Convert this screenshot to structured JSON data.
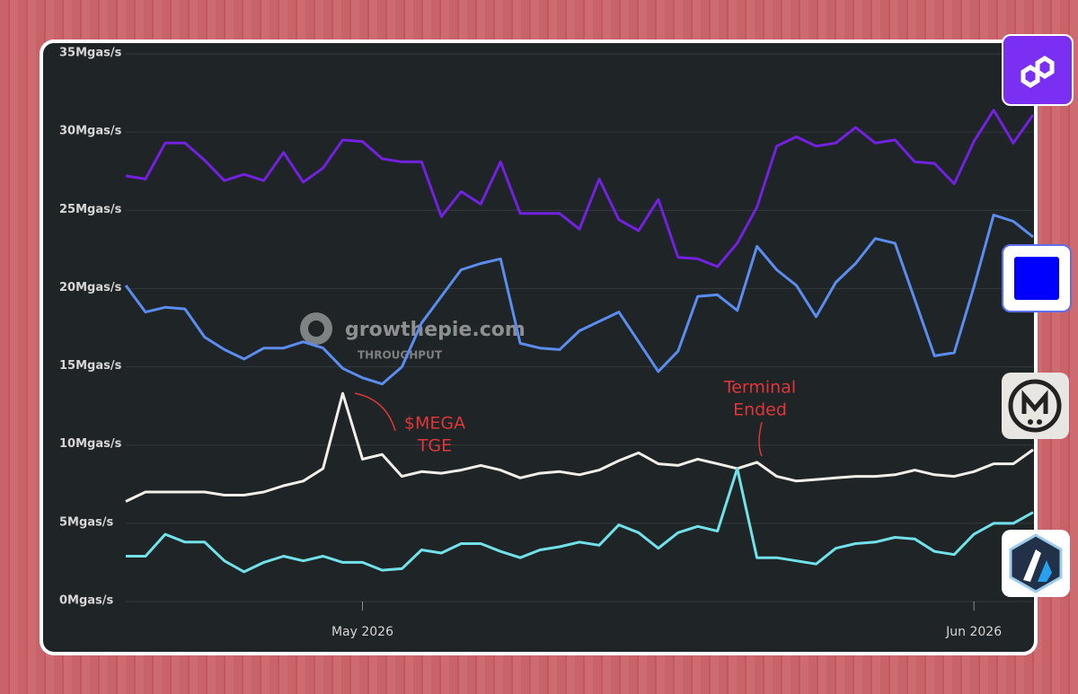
{
  "chart_data": {
    "type": "line",
    "watermark": "growthepie.com",
    "watermark_subtitle": "THROUGHPUT",
    "categories": [
      null,
      null,
      null,
      null,
      null,
      null,
      null,
      null,
      null,
      null,
      null,
      null,
      "May 2026",
      null,
      null,
      null,
      null,
      null,
      null,
      null,
      null,
      null,
      null,
      null,
      null,
      null,
      null,
      null,
      null,
      null,
      null,
      null,
      null,
      null,
      null,
      null,
      null,
      null,
      null,
      null,
      null,
      null,
      null,
      "Jun 2026",
      null,
      null,
      null
    ],
    "series": [
      {
        "color": "#7321e0",
        "values": [
          27.2,
          27.0,
          29.3,
          29.3,
          28.2,
          26.9,
          27.3,
          26.9,
          28.7,
          26.8,
          27.7,
          29.5,
          29.4,
          28.3,
          28.1,
          28.1,
          24.6,
          26.2,
          25.4,
          28.1,
          24.8,
          24.8,
          24.8,
          23.8,
          27.0,
          24.4,
          23.7,
          25.7,
          22.0,
          21.9,
          21.4,
          22.9,
          25.2,
          29.1,
          29.7,
          29.1,
          29.3,
          30.3,
          29.3,
          29.5,
          28.1,
          28.0,
          26.7,
          29.4,
          31.4,
          29.3,
          31.1
        ]
      },
      {
        "color": "#5b8cf0",
        "values": [
          20.2,
          18.5,
          18.8,
          18.7,
          16.9,
          16.1,
          15.5,
          16.2,
          16.2,
          16.6,
          16.2,
          14.9,
          14.3,
          13.9,
          15.0,
          17.8,
          19.5,
          21.2,
          21.6,
          21.9,
          16.5,
          16.2,
          16.1,
          17.3,
          17.9,
          18.5,
          16.6,
          14.7,
          16.0,
          19.5,
          19.6,
          18.6,
          22.7,
          21.2,
          20.2,
          18.2,
          20.4,
          21.6,
          23.2,
          22.9,
          19.3,
          15.7,
          15.9,
          20.1,
          24.7,
          24.3,
          23.3
        ]
      },
      {
        "color": "#f2efea",
        "values": [
          6.4,
          7.0,
          7.0,
          7.0,
          7.0,
          6.8,
          6.8,
          7.0,
          7.4,
          7.7,
          8.5,
          13.3,
          9.1,
          9.4,
          8.0,
          8.3,
          8.2,
          8.4,
          8.7,
          8.4,
          7.9,
          8.2,
          8.3,
          8.1,
          8.4,
          9.0,
          9.5,
          8.8,
          8.7,
          9.1,
          8.8,
          8.5,
          8.9,
          8.0,
          7.7,
          7.8,
          7.9,
          8.0,
          8.0,
          8.1,
          8.4,
          8.1,
          8.0,
          8.3,
          8.8,
          8.8,
          9.7
        ]
      },
      {
        "color": "#72e2ea",
        "values": [
          2.9,
          2.9,
          4.3,
          3.8,
          3.8,
          2.6,
          1.9,
          2.5,
          2.9,
          2.6,
          2.9,
          2.5,
          2.5,
          2.0,
          2.1,
          3.3,
          3.1,
          3.7,
          3.7,
          3.2,
          2.8,
          3.3,
          3.5,
          3.8,
          3.6,
          4.9,
          4.4,
          3.4,
          4.4,
          4.8,
          4.5,
          8.5,
          2.8,
          2.8,
          2.6,
          2.4,
          3.4,
          3.7,
          3.8,
          4.1,
          4.0,
          3.2,
          3.0,
          4.3,
          5.0,
          5.0,
          5.7
        ]
      }
    ],
    "ylim": [
      0,
      35
    ],
    "yticks": [
      {
        "value": 0,
        "label": "0Mgas/s"
      },
      {
        "value": 5,
        "label": "5Mgas/s"
      },
      {
        "value": 10,
        "label": "10Mgas/s"
      },
      {
        "value": 15,
        "label": "15Mgas/s"
      },
      {
        "value": 20,
        "label": "20Mgas/s"
      },
      {
        "value": 25,
        "label": "25Mgas/s"
      },
      {
        "value": 30,
        "label": "30Mgas/s"
      },
      {
        "value": 35,
        "label": "35Mgas/s"
      }
    ],
    "grid": true,
    "annotations": [
      {
        "color": "#e0363a",
        "lines": [
          "$MEGA",
          "TGE"
        ]
      },
      {
        "color": "#e0363a",
        "lines": [
          "Terminal",
          "Ended"
        ]
      }
    ]
  }
}
